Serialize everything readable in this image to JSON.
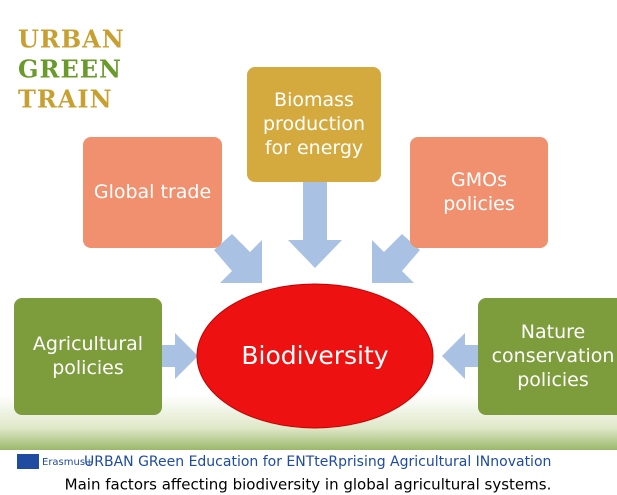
{
  "logo": {
    "lines": [
      "URBAN",
      "GREEN",
      "TRAIN"
    ]
  },
  "nodes": [
    {
      "lines": [
        "Global trade"
      ]
    },
    {
      "lines": [
        "Biomass",
        "production",
        "for energy"
      ]
    },
    {
      "lines": [
        "GMOs",
        "policies"
      ]
    },
    {
      "lines": [
        "Agricultural",
        "policies"
      ]
    },
    {
      "lines": [
        "Nature",
        "conservation",
        "policies"
      ]
    }
  ],
  "center": {
    "label": "Biodiversity"
  },
  "footer": {
    "program": "Erasmus+",
    "text": "URBAN GReen Education for ENTteRprising Agricultural INnovation"
  },
  "caption": "Main factors affecting biodiversity in global agricultural systems."
}
